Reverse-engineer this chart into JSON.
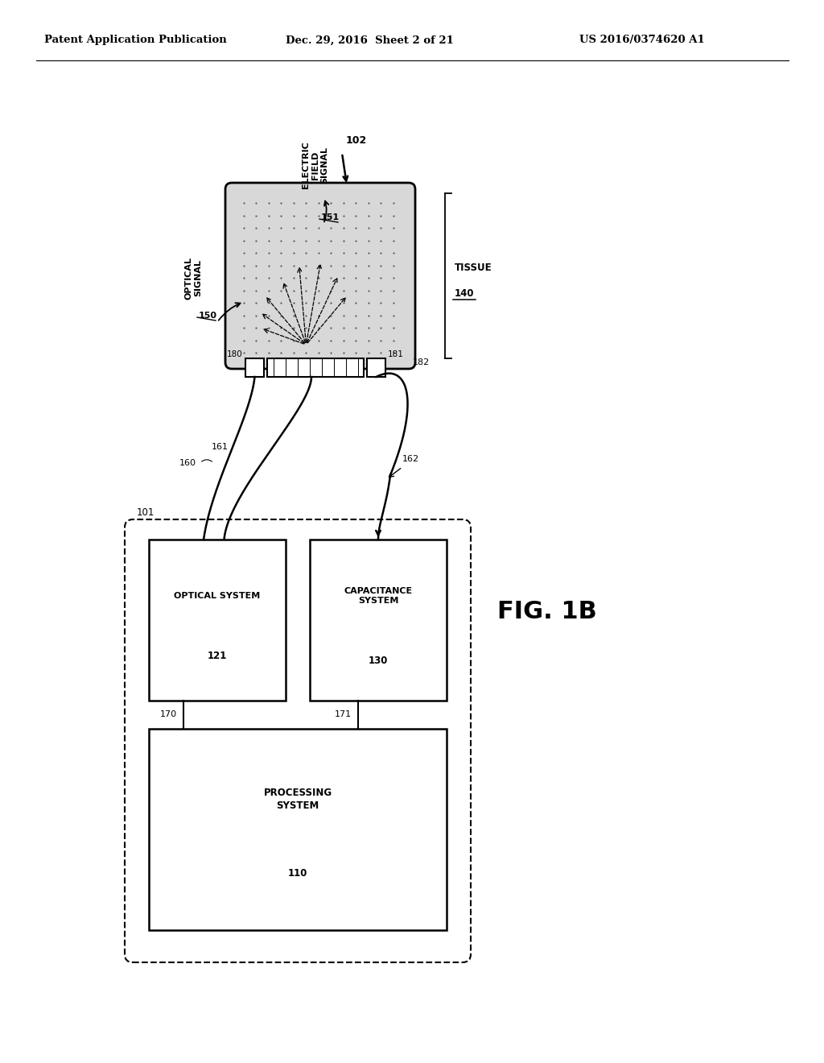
{
  "bg_color": "#ffffff",
  "header_left": "Patent Application Publication",
  "header_mid": "Dec. 29, 2016  Sheet 2 of 21",
  "header_right": "US 2016/0374620 A1",
  "fig_label": "FIG. 1B",
  "label_102": "102",
  "label_101": "101",
  "label_110": "110",
  "label_121": "121",
  "label_130": "130",
  "label_140": "140",
  "label_150": "150",
  "label_151": "151",
  "label_160": "160",
  "label_161": "161",
  "label_162": "162",
  "label_170": "170",
  "label_171": "171",
  "label_180": "180",
  "label_181": "181",
  "label_182": "182",
  "text_optical_signal": "OPTICAL\nSIGNAL",
  "text_electric_field": "ELECTRIC\nFIELD\nSIGNAL",
  "text_tissue": "TISSUE",
  "text_optical_system": "OPTICAL SYSTEM",
  "text_capacitance_system": "CAPACITANCE\nSYSTEM",
  "text_processing_system": "PROCESSING\nSYSTEM"
}
